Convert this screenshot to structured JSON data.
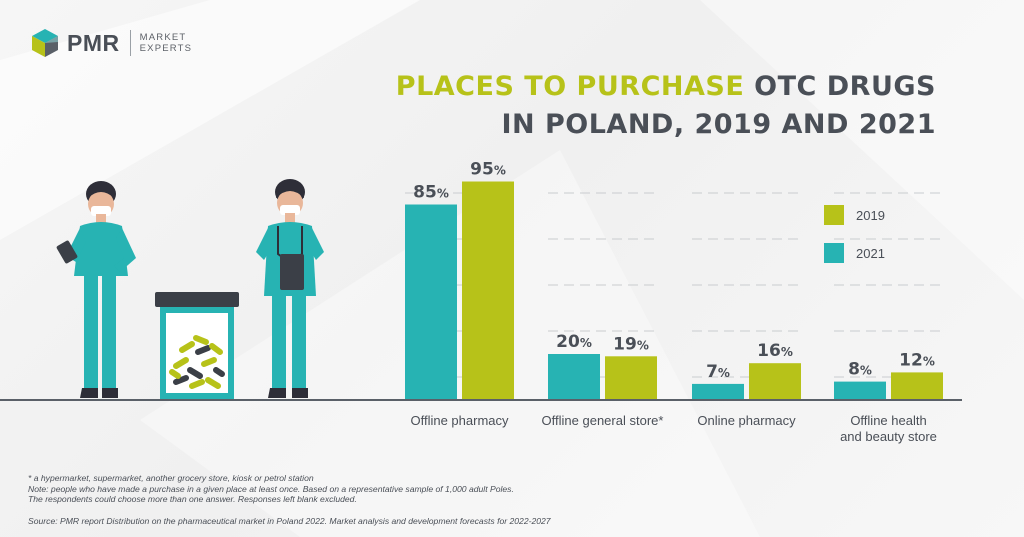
{
  "brand": {
    "name": "PMR",
    "tagline_line1": "MARKET",
    "tagline_line2": "EXPERTS"
  },
  "title": {
    "line1_highlight": "PLACES TO PURCHASE",
    "line1_rest": "OTC DRUGS",
    "line2": "IN POLAND, 2019 AND 2021"
  },
  "chart_data": {
    "type": "bar",
    "categories": [
      [
        "Offline pharmacy"
      ],
      [
        "Offline general store*"
      ],
      [
        "Online pharmacy"
      ],
      [
        "Offline health",
        "and beauty store"
      ]
    ],
    "series": [
      {
        "name": "2021",
        "values": [
          85,
          20,
          7,
          8
        ],
        "color": "#27b3b3"
      },
      {
        "name": "2019",
        "values": [
          95,
          19,
          16,
          12
        ],
        "color": "#b7c219"
      }
    ],
    "value_suffix": "%",
    "ylim": [
      0,
      100
    ],
    "grid": true,
    "legend_position": "right",
    "legend_order": [
      "2019",
      "2021"
    ]
  },
  "notes": {
    "footnote": "* a hypermarket, supermarket, another grocery store, kiosk or petrol station",
    "note_line1": "Note: people who have made a purchase in a given place at least once. Based on a representative sample of 1,000 adult Poles.",
    "note_line2": "The respondents could choose more than one answer. Responses left blank excluded.",
    "source": "Source: PMR report Distribution on the pharmaceutical market in Poland 2022. Market analysis and development forecasts for 2022-2027"
  },
  "colors": {
    "accent_green": "#b7c219",
    "accent_teal": "#27b3b3",
    "text_dark": "#4a4f57"
  }
}
